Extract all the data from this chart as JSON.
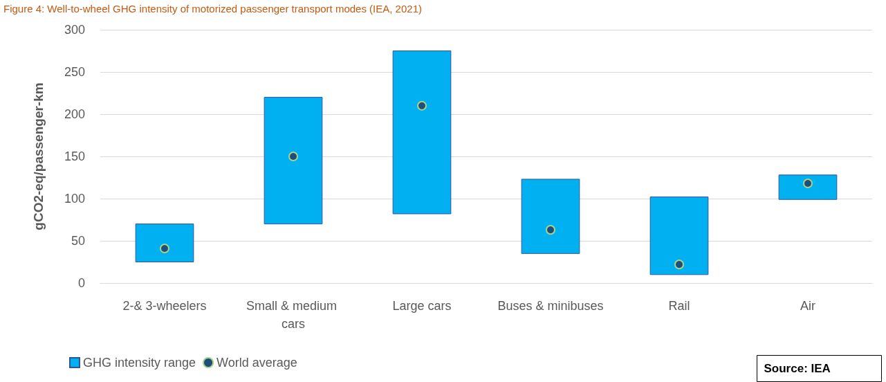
{
  "chart_data": {
    "type": "bar",
    "title": "Figure 4: Well-to-wheel GHG intensity of motorized passenger transport modes (IEA, 2021)",
    "ylabel": "gCO2-eq/passenger-km",
    "categories": [
      "2-& 3-wheelers",
      "Small & medium cars",
      "Large cars",
      "Buses & minibuses",
      "Rail",
      "Air"
    ],
    "series": [
      {
        "name": "GHG intensity range",
        "color": "#00b0f0",
        "base": [
          25,
          70,
          82,
          35,
          10,
          99
        ],
        "values": [
          45,
          150,
          193,
          88,
          92,
          29
        ]
      },
      {
        "name": "World average",
        "type": "scatter",
        "color": "#1f4e79",
        "marker": "circle",
        "x": [
          "2-& 3-wheelers",
          "Small & medium cars",
          "Large cars",
          "Buses & minibuses",
          "Rail",
          "Air"
        ],
        "values": [
          41,
          150,
          210,
          63,
          22,
          118
        ]
      }
    ],
    "ylim": [
      0,
      300
    ],
    "yticks": [
      0,
      50,
      100,
      150,
      200,
      250,
      300
    ],
    "grid": "y",
    "legend": "bottom left",
    "annotations": [
      "Source: IEA"
    ]
  }
}
